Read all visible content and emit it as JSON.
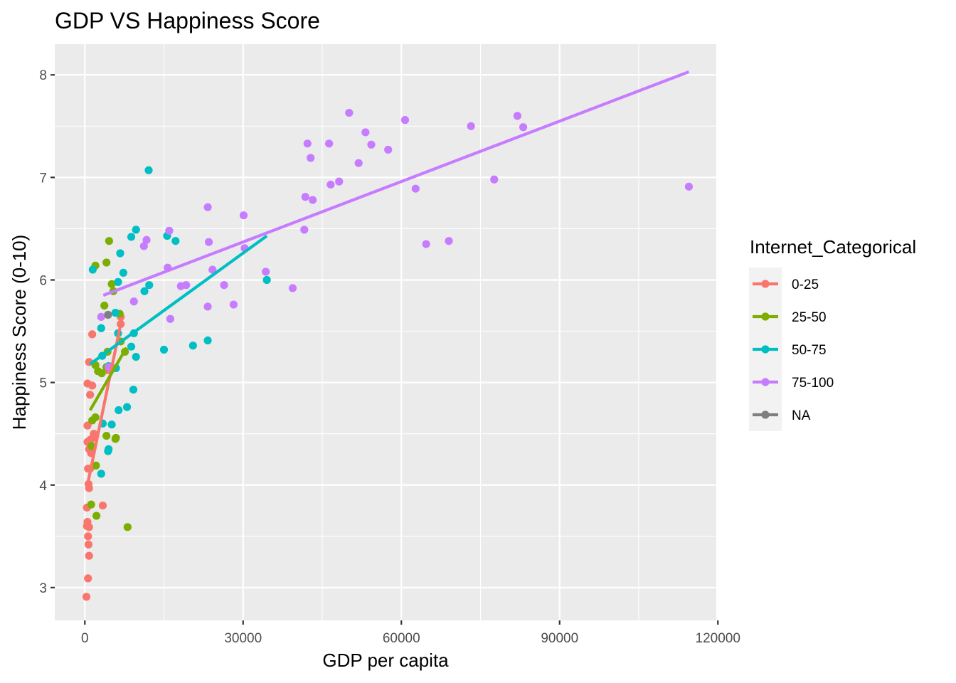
{
  "chart_data": {
    "type": "scatter",
    "title": "GDP VS Happiness Score",
    "xlabel": "GDP per capita",
    "ylabel": "Happiness Score (0-10)",
    "xlim": [
      -5700,
      119700
    ],
    "ylim": [
      2.68,
      8.3
    ],
    "x_ticks": [
      0,
      30000,
      60000,
      90000,
      120000
    ],
    "x_tick_labels": [
      "0",
      "30000",
      "60000",
      "90000",
      "120000"
    ],
    "y_ticks": [
      3,
      4,
      5,
      6,
      7,
      8
    ],
    "y_tick_labels": [
      "3",
      "4",
      "5",
      "6",
      "7",
      "8"
    ],
    "grid": true,
    "panel_background": "#ebebeb",
    "legend": {
      "title": "Internet_Categorical",
      "position": "right"
    },
    "series": [
      {
        "name": "0-25",
        "color": "#f8766d",
        "points": [
          [
            300,
            2.91
          ],
          [
            600,
            3.09
          ],
          [
            800,
            3.31
          ],
          [
            700,
            3.42
          ],
          [
            600,
            3.5
          ],
          [
            800,
            3.59
          ],
          [
            400,
            3.6
          ],
          [
            500,
            3.64
          ],
          [
            400,
            3.78
          ],
          [
            3400,
            3.8
          ],
          [
            800,
            3.97
          ],
          [
            700,
            4.01
          ],
          [
            600,
            4.16
          ],
          [
            1000,
            4.16
          ],
          [
            1200,
            4.31
          ],
          [
            800,
            4.35
          ],
          [
            900,
            4.41
          ],
          [
            500,
            4.42
          ],
          [
            1000,
            4.44
          ],
          [
            1500,
            4.46
          ],
          [
            1700,
            4.5
          ],
          [
            500,
            4.58
          ],
          [
            1000,
            4.88
          ],
          [
            1400,
            4.97
          ],
          [
            500,
            4.99
          ],
          [
            800,
            5.2
          ],
          [
            1400,
            5.47
          ],
          [
            4200,
            5.12
          ],
          [
            6800,
            5.57
          ],
          [
            6800,
            5.64
          ]
        ],
        "trend": [
          [
            500,
            4.0
          ],
          [
            7000,
            5.62
          ]
        ]
      },
      {
        "name": "25-50",
        "color": "#7cae00",
        "points": [
          [
            8100,
            3.59
          ],
          [
            2200,
            3.7
          ],
          [
            1200,
            3.81
          ],
          [
            2100,
            4.19
          ],
          [
            1300,
            4.38
          ],
          [
            5800,
            4.45
          ],
          [
            5900,
            4.46
          ],
          [
            4100,
            4.48
          ],
          [
            1400,
            4.63
          ],
          [
            2000,
            4.66
          ],
          [
            3200,
            5.09
          ],
          [
            2500,
            5.11
          ],
          [
            4100,
            5.15
          ],
          [
            2000,
            5.17
          ],
          [
            7600,
            5.3
          ],
          [
            4300,
            5.3
          ],
          [
            6800,
            5.4
          ],
          [
            6600,
            5.67
          ],
          [
            3700,
            5.75
          ],
          [
            5400,
            5.89
          ],
          [
            5100,
            5.96
          ],
          [
            2000,
            6.14
          ],
          [
            4100,
            6.17
          ],
          [
            4600,
            6.38
          ]
        ],
        "trend": [
          [
            1000,
            4.73
          ],
          [
            7900,
            5.34
          ]
        ]
      },
      {
        "name": "50-75",
        "color": "#00bfc4",
        "points": [
          [
            3100,
            4.11
          ],
          [
            4400,
            4.33
          ],
          [
            4500,
            4.35
          ],
          [
            5100,
            4.59
          ],
          [
            3400,
            4.6
          ],
          [
            8000,
            4.76
          ],
          [
            6400,
            4.73
          ],
          [
            9200,
            4.93
          ],
          [
            5900,
            5.14
          ],
          [
            4500,
            5.16
          ],
          [
            9700,
            5.25
          ],
          [
            8800,
            5.35
          ],
          [
            3300,
            5.26
          ],
          [
            15000,
            5.32
          ],
          [
            20500,
            5.36
          ],
          [
            23300,
            5.41
          ],
          [
            9300,
            5.48
          ],
          [
            3100,
            5.53
          ],
          [
            6300,
            5.48
          ],
          [
            5800,
            5.68
          ],
          [
            6300,
            5.98
          ],
          [
            12200,
            5.95
          ],
          [
            11300,
            5.89
          ],
          [
            34500,
            6.0
          ],
          [
            7300,
            6.07
          ],
          [
            1500,
            6.1
          ],
          [
            6700,
            6.26
          ],
          [
            17200,
            6.38
          ],
          [
            8800,
            6.42
          ],
          [
            15600,
            6.43
          ],
          [
            9700,
            6.49
          ],
          [
            12100,
            7.07
          ]
        ],
        "trend": [
          [
            1000,
            5.18
          ],
          [
            34500,
            6.43
          ]
        ]
      },
      {
        "name": "75-100",
        "color": "#c77cff",
        "points": [
          [
            3100,
            5.64
          ],
          [
            16200,
            5.62
          ],
          [
            23300,
            5.74
          ],
          [
            28200,
            5.76
          ],
          [
            9300,
            5.79
          ],
          [
            18200,
            5.94
          ],
          [
            19200,
            5.95
          ],
          [
            26400,
            5.95
          ],
          [
            39400,
            5.92
          ],
          [
            15700,
            6.12
          ],
          [
            24200,
            6.1
          ],
          [
            34300,
            6.08
          ],
          [
            11200,
            6.33
          ],
          [
            64700,
            6.35
          ],
          [
            69000,
            6.38
          ],
          [
            23500,
            6.37
          ],
          [
            11700,
            6.39
          ],
          [
            16000,
            6.48
          ],
          [
            41600,
            6.49
          ],
          [
            30300,
            6.31
          ],
          [
            30100,
            6.63
          ],
          [
            23300,
            6.71
          ],
          [
            41800,
            6.81
          ],
          [
            43200,
            6.78
          ],
          [
            62700,
            6.89
          ],
          [
            46600,
            6.93
          ],
          [
            48200,
            6.96
          ],
          [
            77600,
            6.98
          ],
          [
            114500,
            6.91
          ],
          [
            51900,
            7.14
          ],
          [
            42800,
            7.19
          ],
          [
            46300,
            7.33
          ],
          [
            42200,
            7.33
          ],
          [
            57500,
            7.27
          ],
          [
            54300,
            7.32
          ],
          [
            53200,
            7.44
          ],
          [
            73200,
            7.5
          ],
          [
            83100,
            7.49
          ],
          [
            60700,
            7.56
          ],
          [
            82000,
            7.6
          ],
          [
            50100,
            7.63
          ],
          [
            4500,
            5.15
          ]
        ],
        "trend": [
          [
            3500,
            5.85
          ],
          [
            114500,
            8.03
          ]
        ]
      },
      {
        "name": "NA",
        "color": "#7f7f7f",
        "points": [
          [
            4400,
            5.66
          ]
        ],
        "trend": []
      }
    ]
  }
}
